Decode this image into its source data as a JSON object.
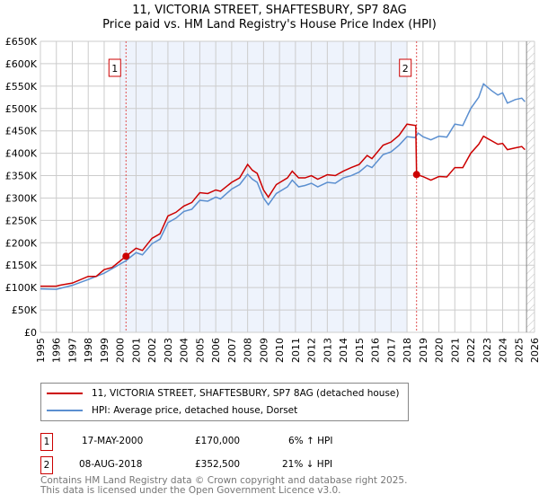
{
  "chart_data": {
    "type": "line",
    "title": "11, VICTORIA STREET, SHAFTESBURY, SP7 8AG",
    "subtitle": "Price paid vs. HM Land Registry's House Price Index (HPI)",
    "xlim": [
      1995,
      2026
    ],
    "ylim": [
      0,
      650000
    ],
    "x_ticks": [
      "1995",
      "1996",
      "1997",
      "1998",
      "1999",
      "2000",
      "2001",
      "2002",
      "2003",
      "2004",
      "2005",
      "2006",
      "2007",
      "2008",
      "2009",
      "2010",
      "2011",
      "2012",
      "2013",
      "2014",
      "2015",
      "2016",
      "2017",
      "2018",
      "2019",
      "2020",
      "2021",
      "2022",
      "2023",
      "2024",
      "2025",
      "2026"
    ],
    "y_ticks": [
      "£0",
      "£50K",
      "£100K",
      "£150K",
      "£200K",
      "£250K",
      "£300K",
      "£350K",
      "£400K",
      "£450K",
      "£500K",
      "£550K",
      "£600K",
      "£650K"
    ],
    "grid": true,
    "shaded_range": [
      2000.0,
      2018.0
    ],
    "hatched_from": 2025.5,
    "series": [
      {
        "name": "11, VICTORIA STREET, SHAFTESBURY, SP7 8AG (detached house)",
        "color": "#cc0000",
        "x": [
          1995,
          1996,
          1996.2,
          1997,
          1998,
          1998.5,
          1999,
          1999.5,
          2000.37,
          2001,
          2001.4,
          2002,
          2002.5,
          2003,
          2003.5,
          2004,
          2004.5,
          2005,
          2005.5,
          2006,
          2006.3,
          2007,
          2007.5,
          2008,
          2008.3,
          2008.6,
          2009,
          2009.3,
          2009.8,
          2010.5,
          2010.8,
          2011.2,
          2011.6,
          2012,
          2012.4,
          2013,
          2013.5,
          2014,
          2014.5,
          2015,
          2015.5,
          2015.8,
          2016.5,
          2017,
          2017.5,
          2018,
          2018.55,
          2018.6,
          2019,
          2019.5,
          2020,
          2020.5,
          2021,
          2021.5,
          2022,
          2022.5,
          2022.8,
          2023.3,
          2023.7,
          2024,
          2024.3,
          2024.8,
          2025.2,
          2025.4
        ],
        "y": [
          103000,
          103000,
          105000,
          110000,
          125000,
          125000,
          140000,
          145000,
          170000,
          188000,
          183000,
          210000,
          220000,
          260000,
          268000,
          282000,
          290000,
          312000,
          310000,
          318000,
          315000,
          335000,
          345000,
          375000,
          362000,
          355000,
          318000,
          302000,
          330000,
          345000,
          360000,
          345000,
          345000,
          350000,
          342000,
          352000,
          350000,
          360000,
          368000,
          375000,
          395000,
          388000,
          418000,
          425000,
          440000,
          465000,
          462000,
          352500,
          348000,
          340000,
          348000,
          347000,
          368000,
          368000,
          400000,
          420000,
          438000,
          428000,
          420000,
          422000,
          408000,
          412000,
          415000,
          408000
        ]
      },
      {
        "name": "HPI: Average price, detached house, Dorset",
        "color": "#5b8fd0",
        "x": [
          1995,
          1996,
          1997,
          1998,
          1999,
          2000.37,
          2001,
          2001.4,
          2002,
          2002.5,
          2003,
          2003.5,
          2004,
          2004.5,
          2005,
          2005.5,
          2006,
          2006.3,
          2007,
          2007.5,
          2008,
          2008.3,
          2008.6,
          2009,
          2009.3,
          2009.8,
          2010.5,
          2010.8,
          2011.2,
          2011.6,
          2012,
          2012.4,
          2013,
          2013.5,
          2014,
          2014.5,
          2015,
          2015.5,
          2015.8,
          2016.5,
          2017,
          2017.5,
          2018,
          2018.5,
          2018.7,
          2019,
          2019.5,
          2020,
          2020.5,
          2021,
          2021.5,
          2022,
          2022.5,
          2022.8,
          2023.3,
          2023.7,
          2024,
          2024.3,
          2024.8,
          2025.2,
          2025.4
        ],
        "y": [
          97000,
          96000,
          105000,
          118000,
          132000,
          160000,
          178000,
          173000,
          198000,
          208000,
          245000,
          255000,
          270000,
          275000,
          295000,
          293000,
          302000,
          298000,
          320000,
          330000,
          353000,
          342000,
          335000,
          300000,
          285000,
          310000,
          325000,
          340000,
          325000,
          328000,
          333000,
          325000,
          335000,
          333000,
          345000,
          350000,
          358000,
          373000,
          368000,
          397000,
          403000,
          418000,
          437000,
          435000,
          445000,
          437000,
          430000,
          438000,
          436000,
          465000,
          462000,
          500000,
          525000,
          555000,
          540000,
          530000,
          535000,
          512000,
          520000,
          523000,
          515000
        ]
      }
    ],
    "annotations": [
      {
        "label": "1",
        "date": "17-MAY-2000",
        "x": 2000.37,
        "price": "£170,000",
        "price_value": 170000,
        "hpi": "6% ↑ HPI"
      },
      {
        "label": "2",
        "date": "08-AUG-2018",
        "x": 2018.6,
        "price": "£352,500",
        "price_value": 352500,
        "hpi": "21% ↓ HPI"
      }
    ]
  },
  "footer": {
    "line1": "Contains HM Land Registry data © Crown copyright and database right 2025.",
    "line2": "This data is licensed under the Open Government Licence v3.0."
  }
}
